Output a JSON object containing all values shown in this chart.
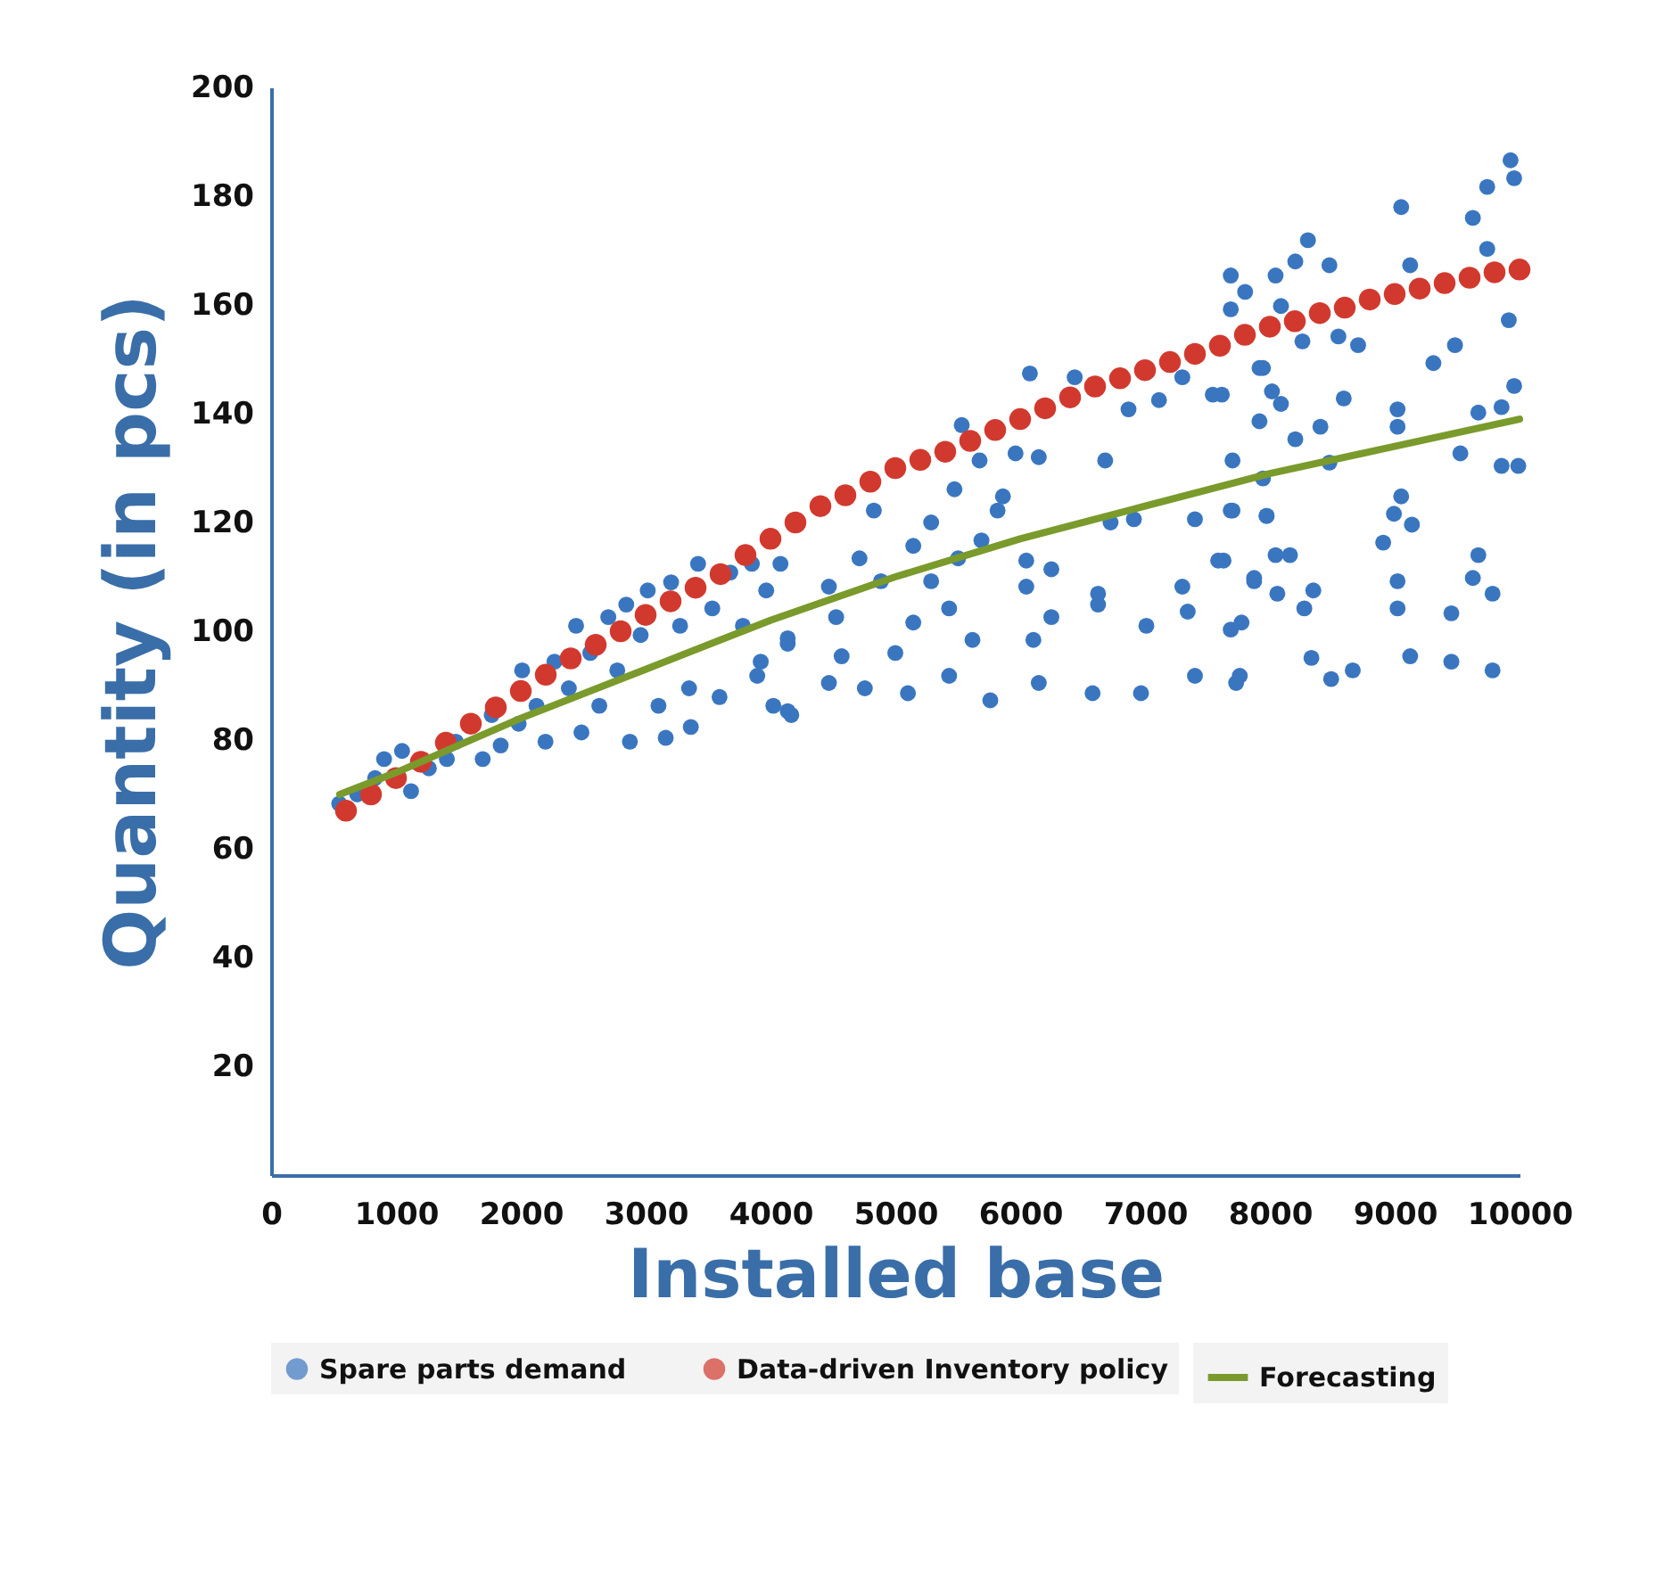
{
  "chart_data": {
    "type": "scatter",
    "xlabel": "Installed base",
    "ylabel": "Quantity (in pcs)",
    "xlim": [
      0,
      10000
    ],
    "ylim": [
      0,
      200
    ],
    "xticks": [
      0,
      1000,
      2000,
      3000,
      4000,
      5000,
      6000,
      7000,
      8000,
      9000,
      10000
    ],
    "yticks": [
      20,
      40,
      60,
      80,
      100,
      120,
      140,
      160,
      180,
      200
    ],
    "legend": "bottom",
    "series": [
      {
        "name": "Spare parts demand",
        "marker": "circle",
        "color": "#3a76c0",
        "x": [
          546,
          690,
          833,
          905,
          1049,
          1121,
          1264,
          1408,
          1480,
          1695,
          1767,
          1839,
          1983,
          2011,
          2126,
          2198,
          2270,
          2385,
          2443,
          2486,
          2557,
          2629,
          2701,
          2773,
          2845,
          2874,
          2960,
          3017,
          3103,
          3161,
          3204,
          3276,
          3348,
          3362,
          3420,
          3534,
          3592,
          3678,
          3779,
          3851,
          3922,
          3966,
          4023,
          4080,
          4138,
          4167,
          6078,
          5532,
          5675,
          5963,
          6681,
          6868,
          7112,
          7299,
          7543,
          7917,
          4828,
          5287,
          5819,
          5474,
          5862,
          4713,
          5144,
          5690,
          6049,
          6724,
          6911,
          7400,
          7687,
          7974,
          4468,
          4885,
          5287,
          5503,
          6049,
          6250,
          6624,
          7299,
          7586,
          7874,
          4526,
          5144,
          5431,
          6250,
          6624,
          7011,
          7342,
          7773,
          4138,
          4570,
          5000,
          5618,
          6106,
          3894,
          4468,
          4756,
          5101,
          5431,
          5761,
          6149,
          6580,
          6968,
          7400,
          7730,
          4138,
          6437,
          6149,
          9928,
          9957,
          9741,
          9052,
          9626,
          8305,
          8204,
          8477,
          9124,
          9741,
          8046,
          7687,
          7802,
          8089,
          7687,
          8261,
          8549,
          8707,
          9310,
          9483,
          9914,
          7945,
          8017,
          7615,
          8089,
          8592,
          7917,
          8405,
          8204,
          9023,
          9023,
          9670,
          9856,
          9957,
          7701,
          7945,
          8477,
          9526,
          9856,
          9990,
          7701,
          7974,
          9052,
          8994,
          9138,
          7629,
          8046,
          8161,
          8908,
          9670,
          7874,
          8060,
          8348,
          9023,
          9023,
          9626,
          9784,
          7687,
          8276,
          9454,
          7759,
          8333,
          8664,
          8491,
          9124,
          9454,
          9784
        ],
        "values": [
          68.3,
          70,
          73,
          76.5,
          78,
          70.6,
          74.8,
          76.5,
          79.7,
          76.5,
          84.6,
          79,
          83,
          92.8,
          86.3,
          79.7,
          94.4,
          89.5,
          101,
          81.4,
          96,
          86.3,
          102.6,
          92.8,
          104.9,
          79.7,
          99.3,
          107.5,
          86.3,
          80.4,
          109,
          101,
          89.5,
          82.4,
          112.4,
          104.2,
          87.9,
          110.8,
          101,
          112.4,
          94.4,
          107.5,
          86.3,
          112.4,
          98.7,
          84.6,
          147.4,
          137.9,
          131.4,
          132.7,
          131.4,
          140.8,
          142.5,
          146.7,
          143.5,
          148.4,
          122.2,
          120,
          122.2,
          126.1,
          124.8,
          113.4,
          115.7,
          116.7,
          113,
          120,
          120.6,
          120.6,
          122.2,
          121.2,
          108.2,
          109.2,
          109.2,
          113.4,
          108.2,
          111.4,
          106.9,
          108.2,
          113,
          109.2,
          102.6,
          101.6,
          104.2,
          102.6,
          104.9,
          101,
          103.6,
          101.6,
          97.7,
          95.4,
          96,
          98.4,
          98.4,
          91.8,
          90.5,
          89.5,
          88.6,
          91.8,
          87.3,
          90.5,
          88.6,
          88.6,
          91.8,
          90.5,
          85.3,
          146.7,
          132,
          186.6,
          183.3,
          181.7,
          178,
          176,
          171.9,
          168,
          167.3,
          167.3,
          170.3,
          165.4,
          165.4,
          162.4,
          159.8,
          159.2,
          153.3,
          154.2,
          152.6,
          149.3,
          152.6,
          157.2,
          148.4,
          144.1,
          143.5,
          141.8,
          142.8,
          138.6,
          137.6,
          135.3,
          140.8,
          137.6,
          140.2,
          141.2,
          145.1,
          131.4,
          128.1,
          131,
          132.7,
          130.4,
          130.4,
          122.2,
          121.2,
          124.8,
          121.6,
          119.6,
          113,
          114,
          114,
          116.3,
          114,
          109.8,
          106.9,
          107.5,
          109.2,
          104.2,
          109.8,
          106.9,
          100.3,
          104.2,
          103.3,
          91.8,
          95.1,
          92.8,
          91.2,
          95.4,
          94.4,
          92.8
        ]
      },
      {
        "name": "Data-driven Inventory policy",
        "marker": "circle",
        "color": "#d2392e",
        "x": [
          600,
          800,
          1000,
          1200,
          1400,
          1600,
          1800,
          2000,
          2200,
          2400,
          2600,
          2800,
          3000,
          3200,
          3400,
          3600,
          3800,
          4000,
          4200,
          4400,
          4600,
          4800,
          5000,
          5200,
          5400,
          5600,
          5800,
          6000,
          6200,
          6400,
          6600,
          6800,
          7000,
          7200,
          7400,
          7600,
          7800,
          8000,
          8200,
          8400,
          8600,
          8800,
          9000,
          9200,
          9400,
          9600,
          9800,
          10000
        ],
        "values": [
          67,
          70,
          73,
          76,
          79.5,
          83,
          86,
          89,
          92,
          95,
          97.5,
          100,
          103,
          105.5,
          108,
          110.5,
          114,
          117,
          120,
          123,
          125,
          127.5,
          130,
          131.5,
          133,
          135,
          137,
          139,
          141,
          143,
          145,
          146.5,
          148,
          149.5,
          151,
          152.5,
          154.5,
          156,
          157,
          158.5,
          159.5,
          161,
          162,
          163,
          164,
          165,
          166,
          166.5
        ]
      },
      {
        "name": "Forecasting",
        "type": "line",
        "color": "#7a9a2c",
        "x": [
          550,
          1000,
          2000,
          3000,
          4000,
          5000,
          6000,
          7000,
          8000,
          9000,
          10000
        ],
        "values": [
          70,
          74,
          84,
          93,
          102,
          110,
          117,
          123,
          129,
          134,
          139
        ]
      }
    ]
  }
}
